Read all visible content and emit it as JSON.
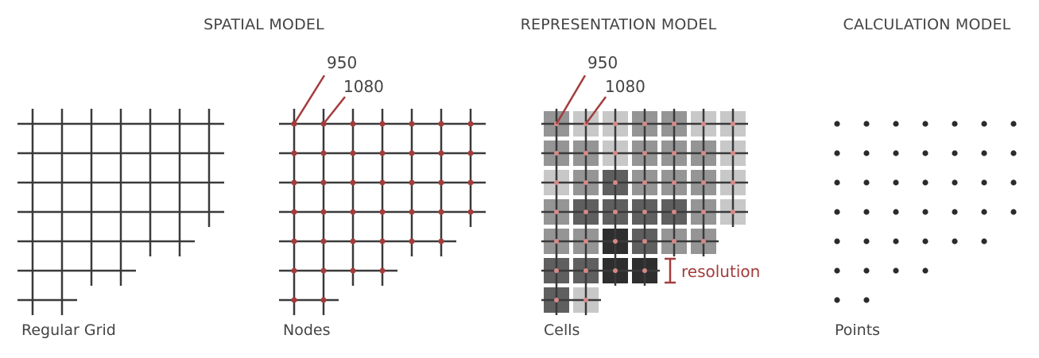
{
  "headings": {
    "spatial": "SPATIAL MODEL",
    "representation": "REPRESENTATION MODEL",
    "calculation": "CALCULATION MODEL"
  },
  "captions": {
    "grid": "Regular Grid",
    "nodes": "Nodes",
    "cells": "Cells",
    "points": "Points"
  },
  "node_values": [
    "950",
    "1080"
  ],
  "cells_values": [
    "950",
    "1080"
  ],
  "resolution_label": "resolution",
  "row_node_counts": [
    7,
    7,
    7,
    7,
    6,
    4,
    2
  ],
  "cell_shades": [
    [
      "mid",
      "light",
      "light",
      "mid",
      "mid",
      "light",
      "light"
    ],
    [
      "mid",
      "mid",
      "light",
      "mid",
      "mid",
      "mid",
      "light"
    ],
    [
      "light",
      "mid",
      "dark",
      "mid",
      "mid",
      "mid",
      "light"
    ],
    [
      "mid",
      "dark",
      "dark",
      "dark",
      "dark",
      "mid",
      "light"
    ],
    [
      "mid",
      "mid",
      "darkest",
      "dark",
      "mid",
      "mid"
    ],
    [
      "dark",
      "dark",
      "darkest",
      "darkest"
    ],
    [
      "dark",
      "light"
    ]
  ],
  "colors": {
    "line": "#3a3a3a",
    "accent": "#a43c3c",
    "node_marker": "#d88888",
    "point": "#2b2b2b",
    "text": "#444444",
    "shade_light": "#c8c8c8",
    "shade_mid": "#959595",
    "shade_dark": "#5f5f5f",
    "shade_darkest": "#2e2e2e"
  }
}
